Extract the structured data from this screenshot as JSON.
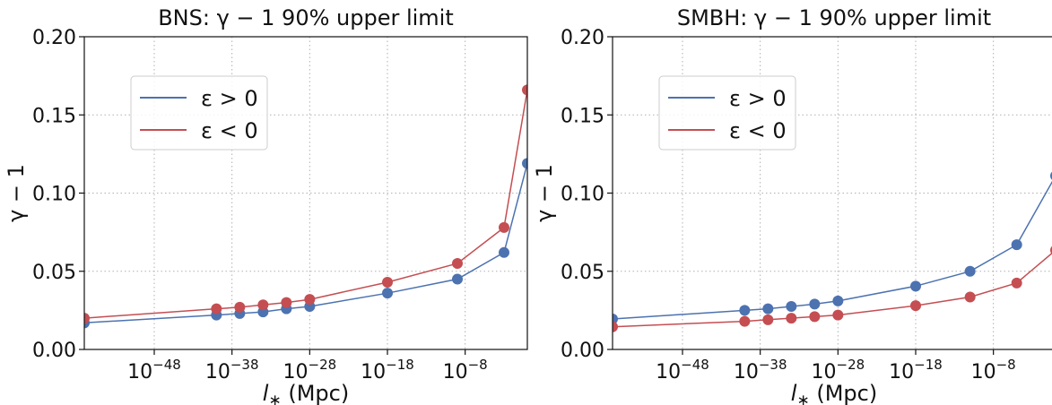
{
  "chart_data": [
    {
      "type": "line",
      "title": "BNS: γ − 1 90% upper limit",
      "xlabel": "l* (Mpc)",
      "ylabel": "γ − 1",
      "xscale": "log",
      "xlim_log10": [
        -57,
        0
      ],
      "ylim": [
        0,
        0.2
      ],
      "xticks": [
        "10^-48",
        "10^-38",
        "10^-28",
        "10^-18",
        "10^-8"
      ],
      "xticks_log10": [
        -48,
        -38,
        -28,
        -18,
        -8
      ],
      "yticks": [
        "0.00",
        "0.05",
        "0.10",
        "0.15",
        "0.20"
      ],
      "grid": true,
      "legend_position": "upper-left",
      "series": [
        {
          "name": "ε > 0",
          "color": "#4c72b0",
          "x_log10": [
            -57,
            -40,
            -37,
            -34,
            -31,
            -28,
            -18,
            -9,
            -3,
            0
          ],
          "y": [
            0.017,
            0.022,
            0.023,
            0.024,
            0.026,
            0.0275,
            0.036,
            0.045,
            0.062,
            0.119
          ]
        },
        {
          "name": "ε < 0",
          "color": "#c44e52",
          "x_log10": [
            -57,
            -40,
            -37,
            -34,
            -31,
            -28,
            -18,
            -9,
            -3,
            0
          ],
          "y": [
            0.02,
            0.026,
            0.027,
            0.0285,
            0.03,
            0.032,
            0.043,
            0.055,
            0.078,
            0.166
          ]
        }
      ]
    },
    {
      "type": "line",
      "title": "SMBH: γ − 1 90% upper limit",
      "xlabel": "l* (Mpc)",
      "ylabel": "γ − 1",
      "xscale": "log",
      "xlim_log10": [
        -57,
        0
      ],
      "ylim": [
        0,
        0.2
      ],
      "xticks": [
        "10^-48",
        "10^-38",
        "10^-28",
        "10^-18",
        "10^-8"
      ],
      "xticks_log10": [
        -48,
        -38,
        -28,
        -18,
        -8
      ],
      "yticks": [
        "0.00",
        "0.05",
        "0.10",
        "0.15",
        "0.20"
      ],
      "grid": true,
      "legend_position": "upper-left",
      "series": [
        {
          "name": "ε > 0",
          "color": "#4c72b0",
          "x_log10": [
            -57,
            -40,
            -37,
            -34,
            -31,
            -28,
            -18,
            -11,
            -5,
            0
          ],
          "y": [
            0.0195,
            0.025,
            0.026,
            0.0275,
            0.029,
            0.031,
            0.0405,
            0.05,
            0.067,
            0.111
          ]
        },
        {
          "name": "ε < 0",
          "color": "#c44e52",
          "x_log10": [
            -57,
            -40,
            -37,
            -34,
            -31,
            -28,
            -18,
            -11,
            -5,
            0
          ],
          "y": [
            0.0145,
            0.018,
            0.019,
            0.02,
            0.021,
            0.022,
            0.028,
            0.0335,
            0.0425,
            0.0635
          ]
        }
      ]
    }
  ]
}
